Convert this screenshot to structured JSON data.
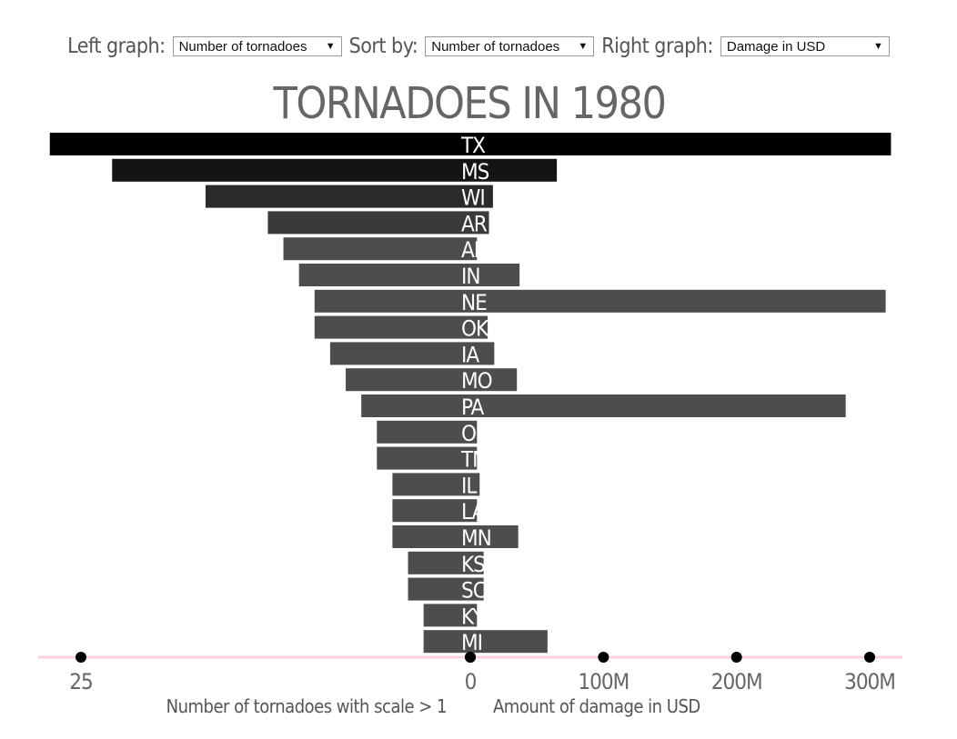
{
  "controls": {
    "left_label": "Left graph:",
    "left_value": "Number of tornadoes",
    "sort_label": "Sort by:",
    "sort_value": "Number of tornadoes",
    "right_label": "Right graph:",
    "right_value": "Damage in USD"
  },
  "chart_data": {
    "type": "bar",
    "title": "TORNADOES IN 1980",
    "categories": [
      "TX",
      "MS",
      "WI",
      "AR",
      "AL",
      "IN",
      "NE",
      "OK",
      "IA",
      "MO",
      "PA",
      "OH",
      "TN",
      "IL",
      "LA",
      "MN",
      "KS",
      "SC",
      "KY",
      "MI"
    ],
    "series": [
      {
        "name": "Number of tornadoes with scale > 1",
        "side": "left",
        "values": [
          27,
          23,
          17,
          13,
          12,
          11,
          10,
          10,
          9,
          8,
          7,
          6,
          6,
          5,
          5,
          5,
          4,
          4,
          3,
          3
        ]
      },
      {
        "name": "Amount of damage in USD",
        "side": "right",
        "values": [
          316,
          65,
          17,
          14,
          5,
          37,
          312,
          13,
          18,
          35,
          282,
          5,
          5,
          7,
          5,
          36,
          10,
          10,
          5,
          58
        ]
      }
    ],
    "left_axis": {
      "label": "Number of tornadoes with scale > 1",
      "ticks": [
        25,
        0
      ],
      "tick_labels": [
        "25",
        "0"
      ]
    },
    "right_axis": {
      "label": "Amount of damage in USD",
      "ticks": [
        0,
        100,
        200,
        300
      ],
      "tick_labels": [
        "0",
        "100M",
        "200M",
        "300M"
      ],
      "unit": "million USD"
    },
    "colors": {
      "axis_line": "#f9d3e1",
      "bar_top": "#000000",
      "bar_second": "#141414",
      "bar_rest": "#4d4d4d",
      "label": "#ffffff",
      "tick_text": "#666666"
    }
  }
}
